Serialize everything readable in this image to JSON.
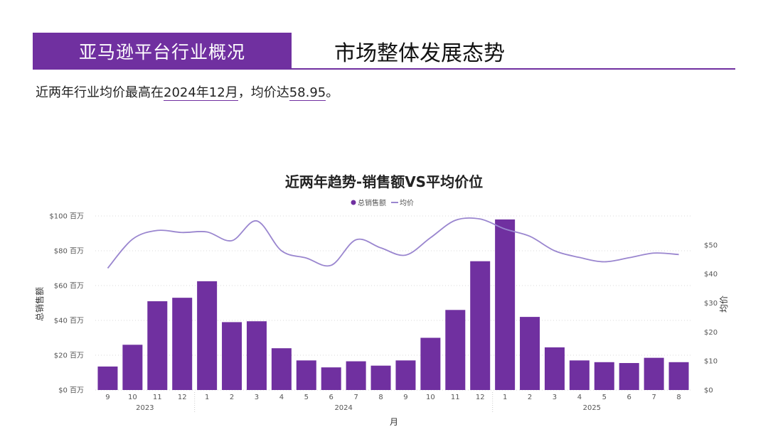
{
  "header": {
    "tag_label": "亚马逊平台行业概况",
    "title": "市场整体发展态势"
  },
  "summary": {
    "prefix": "近两年行业均价最高在",
    "peak_month": "2024年12月",
    "middle": "，均价达",
    "peak_price": "58.95",
    "suffix": "。"
  },
  "colors": {
    "accent": "#7030a0",
    "bar": "#7030a0",
    "line": "#9a86cf"
  },
  "chart_data": {
    "type": "bar",
    "title": "近两年趋势-销售额VS平均价位",
    "legend": {
      "placement": "top-center",
      "items": [
        "总销售额",
        "均价"
      ]
    },
    "xlabel": "月",
    "ylabel": "总销售额",
    "y2label": "均价",
    "ylim": [
      0,
      100
    ],
    "y2lim": [
      0,
      60
    ],
    "yticks": [
      "$0 百万",
      "$20 百万",
      "$40 百万",
      "$60 百万",
      "$80 百万",
      "$100 百万"
    ],
    "y2ticks": [
      "$0",
      "$10",
      "$20",
      "$30",
      "$40",
      "$50"
    ],
    "categories": [
      "9",
      "10",
      "11",
      "12",
      "1",
      "2",
      "3",
      "4",
      "5",
      "6",
      "7",
      "8",
      "9",
      "10",
      "11",
      "12",
      "1",
      "2",
      "3",
      "4",
      "5",
      "6",
      "7",
      "8"
    ],
    "years": [
      {
        "label": "2023",
        "start": 0,
        "end": 3
      },
      {
        "label": "2024",
        "start": 4,
        "end": 15
      },
      {
        "label": "2025",
        "start": 16,
        "end": 23
      }
    ],
    "grid": true,
    "series": [
      {
        "name": "总销售额",
        "type": "bar",
        "axis": "left",
        "values": [
          13.5,
          26,
          51,
          53,
          62.5,
          39,
          39.5,
          24,
          17,
          13,
          16.5,
          14,
          17,
          30,
          46,
          74,
          98,
          42,
          24.5,
          17,
          16,
          15.5,
          18.5,
          16
        ]
      },
      {
        "name": "均价",
        "type": "line",
        "axis": "right",
        "values": [
          42,
          52,
          55,
          54.3,
          54.5,
          51.5,
          58.3,
          48,
          45.5,
          43,
          51.8,
          49,
          46.5,
          52.5,
          58.5,
          58.95,
          55.5,
          53,
          48,
          45.7,
          44.2,
          45.6,
          47.2,
          46.7
        ]
      }
    ]
  }
}
